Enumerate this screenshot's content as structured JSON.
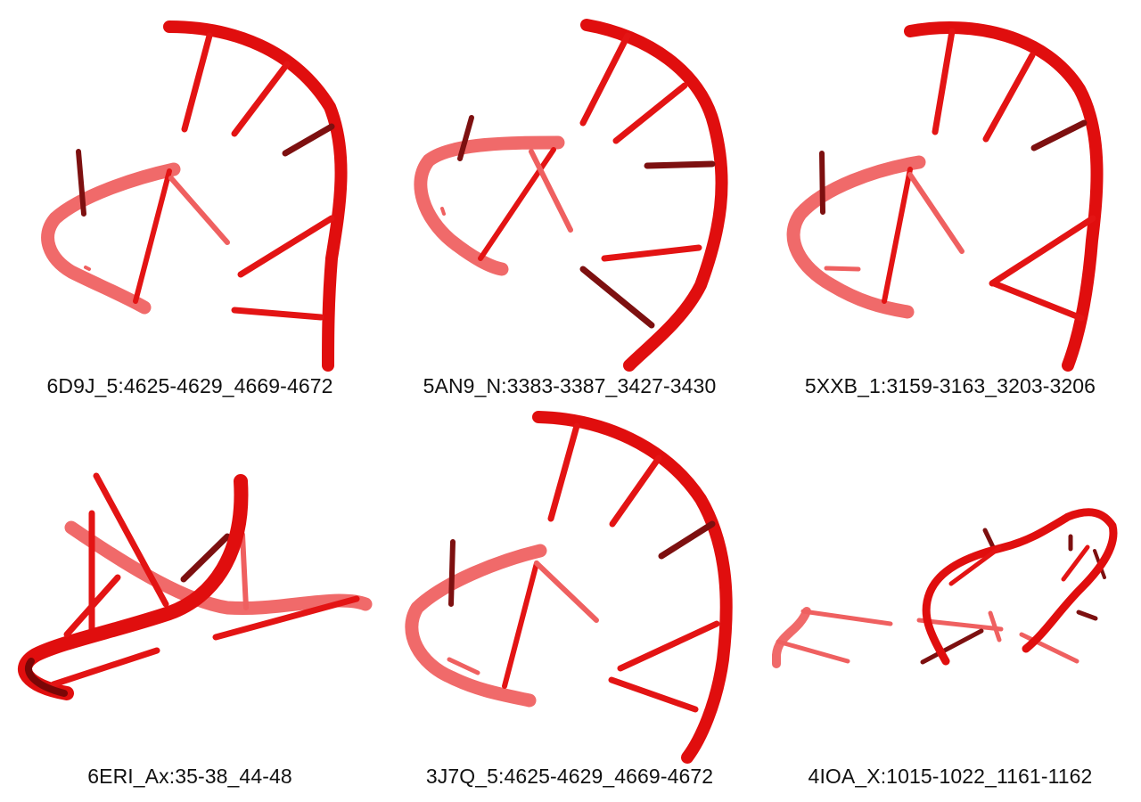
{
  "figure": {
    "colors": {
      "backbone": "#e00e0e",
      "backbone_light": "#f06a6a",
      "backbone_dark": "#7a0606",
      "background": "#ffffff"
    },
    "panels": [
      {
        "id": "panel-1",
        "label": "6D9J_5:4625-4629_4669-4672"
      },
      {
        "id": "panel-2",
        "label": "5AN9_N:3383-3387_3427-3430"
      },
      {
        "id": "panel-3",
        "label": "5XXB_1:3159-3163_3203-3206"
      },
      {
        "id": "panel-4",
        "label": "6ERI_Ax:35-38_44-48"
      },
      {
        "id": "panel-5",
        "label": "3J7Q_5:4625-4629_4669-4672"
      },
      {
        "id": "panel-6",
        "label": "4IOA_X:1015-1022_1161-1162"
      }
    ]
  }
}
